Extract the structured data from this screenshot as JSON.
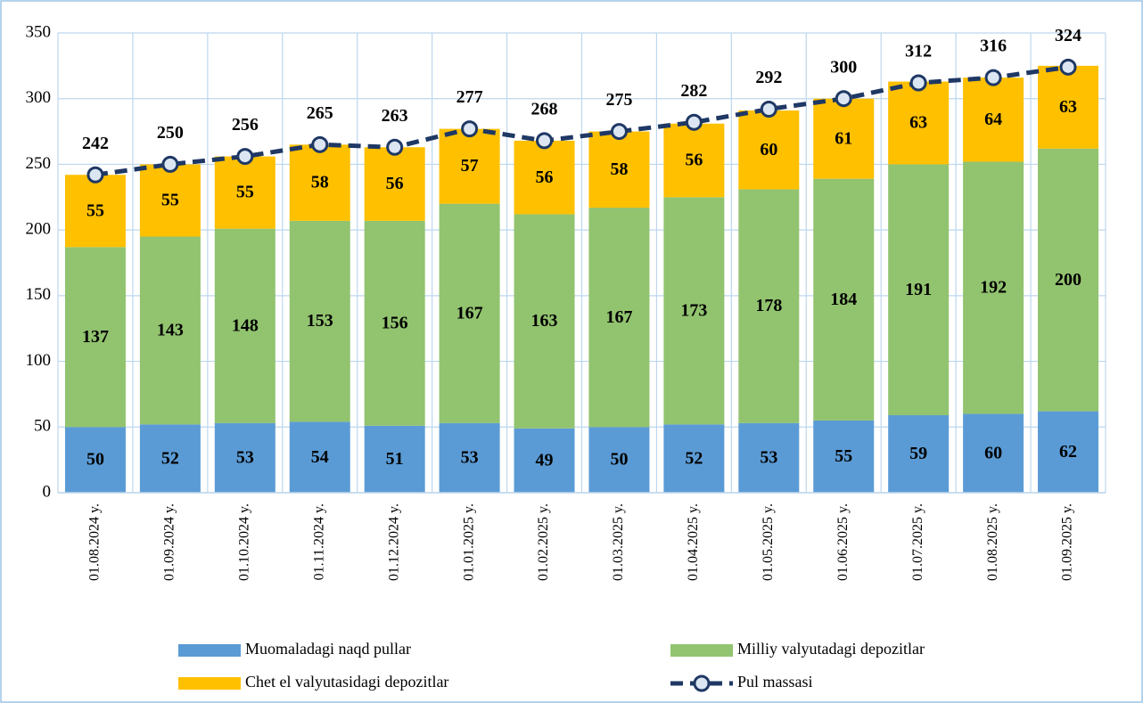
{
  "chart_data": {
    "type": "bar",
    "stacked": true,
    "categories": [
      "01.08.2024 y.",
      "01.09.2024 y.",
      "01.10.2024 y.",
      "01.11.2024 y.",
      "01.12.2024 y.",
      "01.01.2025 y.",
      "01.02.2025 y.",
      "01.03.2025 y.",
      "01.04.2025 y.",
      "01.05.2025 y.",
      "01.06.2025 y.",
      "01.07.2025 y.",
      "01.08.2025 y.",
      "01.09.2025 y."
    ],
    "series": [
      {
        "name": "Muomaladagi naqd pullar",
        "type": "bar",
        "color": "#5b9bd5",
        "values": [
          50,
          52,
          53,
          54,
          51,
          53,
          49,
          50,
          52,
          53,
          55,
          59,
          60,
          62
        ]
      },
      {
        "name": "Milliy valyutadagi depozitlar",
        "type": "bar",
        "color": "#92c36f",
        "values": [
          137,
          143,
          148,
          153,
          156,
          167,
          163,
          167,
          173,
          178,
          184,
          191,
          192,
          200
        ]
      },
      {
        "name": "Chet el valyutasidagi depozitlar",
        "type": "bar",
        "color": "#ffc000",
        "values": [
          55,
          55,
          55,
          58,
          56,
          57,
          56,
          58,
          56,
          60,
          61,
          63,
          64,
          63
        ]
      },
      {
        "name": "Pul massasi",
        "type": "line",
        "color": "#1f3864",
        "values": [
          242,
          250,
          256,
          265,
          263,
          277,
          268,
          275,
          282,
          292,
          300,
          312,
          316,
          324
        ]
      }
    ],
    "ylim": [
      0,
      350
    ],
    "yticks": [
      0,
      50,
      100,
      150,
      200,
      250,
      300,
      350
    ],
    "grid": true,
    "legend": "bottom"
  }
}
